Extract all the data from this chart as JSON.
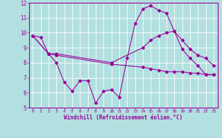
{
  "line1_x": [
    0,
    1,
    2,
    3,
    4,
    5,
    6,
    7,
    8,
    9,
    10,
    11,
    12,
    13,
    14,
    15,
    16,
    17,
    18,
    19,
    20,
    21,
    22,
    23
  ],
  "line1_y": [
    9.8,
    9.7,
    8.6,
    8.0,
    6.7,
    6.1,
    6.8,
    6.8,
    5.3,
    6.1,
    6.2,
    5.7,
    8.3,
    10.6,
    11.6,
    11.8,
    11.5,
    11.3,
    10.1,
    8.9,
    8.3,
    7.8,
    7.2,
    7.2
  ],
  "line2_x": [
    0,
    2,
    3,
    10,
    14,
    15,
    16,
    17,
    18,
    19,
    20,
    21,
    22,
    23
  ],
  "line2_y": [
    9.8,
    8.6,
    8.6,
    8.0,
    9.0,
    9.5,
    9.8,
    10.0,
    10.1,
    9.5,
    8.9,
    8.5,
    8.3,
    7.8
  ],
  "line3_x": [
    0,
    2,
    3,
    10,
    14,
    15,
    16,
    17,
    18,
    19,
    20,
    21,
    22,
    23
  ],
  "line3_y": [
    9.8,
    8.6,
    8.5,
    7.9,
    7.7,
    7.6,
    7.5,
    7.4,
    7.4,
    7.4,
    7.3,
    7.3,
    7.2,
    7.2
  ],
  "color": "#990099",
  "bg_color": "#b2e0e0",
  "grid_color": "#c8d8d8",
  "xlabel": "Windchill (Refroidissement éolien,°C)",
  "xlim": [
    -0.5,
    23.5
  ],
  "ylim": [
    5,
    12
  ],
  "yticks": [
    5,
    6,
    7,
    8,
    9,
    10,
    11,
    12
  ],
  "xticks": [
    0,
    1,
    2,
    3,
    4,
    5,
    6,
    7,
    8,
    9,
    10,
    11,
    12,
    13,
    14,
    15,
    16,
    17,
    18,
    19,
    20,
    21,
    22,
    23
  ],
  "marker": "D",
  "markersize": 2.0,
  "linewidth": 0.8
}
